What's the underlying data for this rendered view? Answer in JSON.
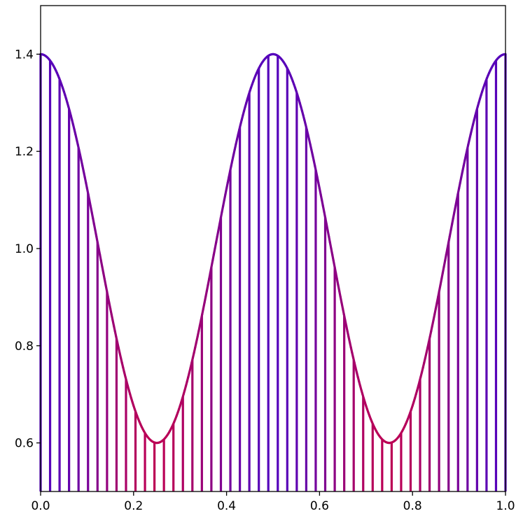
{
  "chart_data": {
    "type": "line",
    "title": "",
    "xlabel": "",
    "ylabel": "",
    "xlim": [
      0.0,
      1.0
    ],
    "ylim": [
      0.5,
      1.5
    ],
    "grid": false,
    "x_ticks": [
      {
        "value": 0.0,
        "label": "0.0"
      },
      {
        "value": 0.2,
        "label": "0.2"
      },
      {
        "value": 0.4,
        "label": "0.4"
      },
      {
        "value": 0.6,
        "label": "0.6"
      },
      {
        "value": 0.8,
        "label": "0.8"
      },
      {
        "value": 1.0,
        "label": "1.0"
      }
    ],
    "y_ticks": [
      {
        "value": 0.6,
        "label": "0.6"
      },
      {
        "value": 0.8,
        "label": "0.8"
      },
      {
        "value": 1.0,
        "label": "1.0"
      },
      {
        "value": 1.2,
        "label": "1.2"
      },
      {
        "value": 1.4,
        "label": "1.4"
      }
    ],
    "curve": {
      "function": "1 + 0.4*cos(4*pi*x)",
      "color_high": "#5500bb",
      "color_low": "#bb0055"
    },
    "stems": {
      "baseline": 0.5,
      "x": [
        0.0,
        0.0204,
        0.0408,
        0.0612,
        0.0816,
        0.102,
        0.1224,
        0.1429,
        0.1633,
        0.1837,
        0.2041,
        0.2245,
        0.2449,
        0.2653,
        0.2857,
        0.3061,
        0.3265,
        0.3469,
        0.3673,
        0.3878,
        0.4082,
        0.4286,
        0.449,
        0.4694,
        0.4898,
        0.5102,
        0.5306,
        0.551,
        0.5714,
        0.5918,
        0.6122,
        0.6327,
        0.6531,
        0.6735,
        0.6939,
        0.7143,
        0.7347,
        0.7551,
        0.7755,
        0.7959,
        0.8163,
        0.8367,
        0.8571,
        0.8776,
        0.898,
        0.9184,
        0.9388,
        0.9592,
        0.9796,
        1.0
      ]
    }
  }
}
